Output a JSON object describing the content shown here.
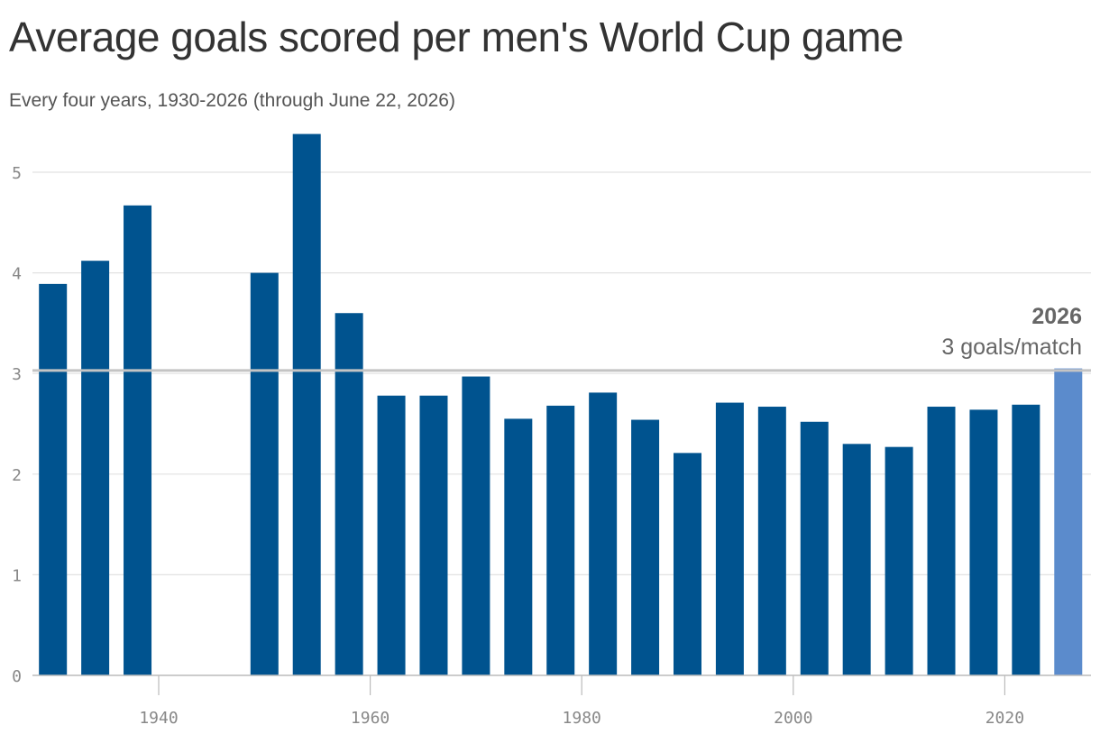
{
  "chart_data": {
    "type": "bar",
    "title": "Average goals scored per men's World Cup game",
    "subtitle": "Every four years, 1930-2026 (through June 22, 2026)",
    "xlabel": "",
    "ylabel": "",
    "ylim": [
      0,
      5.4
    ],
    "xlim": [
      1928,
      2028
    ],
    "x_ticks": [
      1940,
      1960,
      1980,
      2000,
      2020
    ],
    "y_ticks": [
      0,
      1,
      2,
      3,
      4,
      5
    ],
    "grid": true,
    "series": [
      {
        "x": [
          1930,
          1934,
          1938,
          1950,
          1954,
          1958,
          1962,
          1966,
          1970,
          1974,
          1978,
          1982,
          1986,
          1990,
          1994,
          1998,
          2002,
          2006,
          2010,
          2014,
          2018,
          2022,
          2026
        ],
        "values": [
          3.89,
          4.12,
          4.67,
          4.0,
          5.38,
          3.6,
          2.78,
          2.78,
          2.97,
          2.55,
          2.68,
          2.81,
          2.54,
          2.21,
          2.71,
          2.67,
          2.52,
          2.3,
          2.27,
          2.67,
          2.64,
          2.69,
          3.05
        ]
      }
    ],
    "highlight": {
      "x": 2026,
      "color": "#5b8bcc"
    },
    "bar_color": "#00538f",
    "reference_line": {
      "value": 3.03,
      "color": "#c4c4c4"
    },
    "annotation": {
      "year": "2026",
      "text": "3 goals/match"
    }
  }
}
